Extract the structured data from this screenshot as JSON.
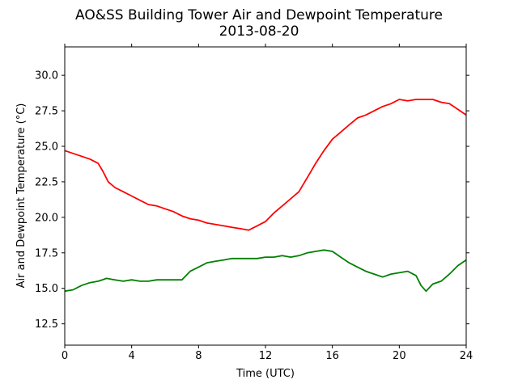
{
  "chart_data": {
    "type": "line",
    "title": "AO&SS Building Tower Air and Dewpoint Temperature",
    "subtitle": "2013-08-20",
    "xlabel": "Time (UTC)",
    "ylabel": "Air and Dewpoint Temperature (°C)",
    "xlim": [
      0,
      24
    ],
    "ylim": [
      11.0,
      32.0
    ],
    "xticks": [
      0,
      4,
      8,
      12,
      16,
      20,
      24
    ],
    "xtick_labels": [
      "0",
      "4",
      "8",
      "12",
      "16",
      "20",
      "24"
    ],
    "yticks": [
      12.5,
      15.0,
      17.5,
      20.0,
      22.5,
      25.0,
      27.5,
      30.0
    ],
    "ytick_labels": [
      "12.5",
      "15.0",
      "17.5",
      "20.0",
      "22.5",
      "25.0",
      "27.5",
      "30.0"
    ],
    "grid": false,
    "series": [
      {
        "color": "#ff0000",
        "x": [
          0,
          0.5,
          1,
          1.5,
          2,
          2.3,
          2.6,
          3,
          3.5,
          4,
          4.5,
          5,
          5.5,
          6,
          6.5,
          7,
          7.5,
          8,
          8.5,
          9,
          9.5,
          10,
          10.5,
          11,
          11.5,
          12,
          12.5,
          13,
          13.5,
          14,
          14.5,
          15,
          15.5,
          16,
          16.5,
          17,
          17.5,
          18,
          18.5,
          19,
          19.5,
          20,
          20.5,
          21,
          21.5,
          22,
          22.5,
          23,
          23.5,
          24
        ],
        "y": [
          24.7,
          24.5,
          24.3,
          24.1,
          23.8,
          23.2,
          22.5,
          22.1,
          21.8,
          21.5,
          21.2,
          20.9,
          20.8,
          20.6,
          20.4,
          20.1,
          19.9,
          19.8,
          19.6,
          19.5,
          19.4,
          19.3,
          19.2,
          19.1,
          19.4,
          19.7,
          20.3,
          20.8,
          21.3,
          21.8,
          22.8,
          23.8,
          24.7,
          25.5,
          26.0,
          26.5,
          27.0,
          27.2,
          27.5,
          27.8,
          28.0,
          28.3,
          28.2,
          28.3,
          28.3,
          28.3,
          28.1,
          28.0,
          27.6,
          27.2
        ]
      },
      {
        "color": "#008000",
        "x": [
          0,
          0.5,
          1,
          1.5,
          2,
          2.5,
          3,
          3.5,
          4,
          4.5,
          5,
          5.5,
          6,
          6.5,
          7,
          7.5,
          8,
          8.5,
          9,
          9.5,
          10,
          10.5,
          11,
          11.5,
          12,
          12.5,
          13,
          13.5,
          14,
          14.5,
          15,
          15.5,
          16,
          16.5,
          17,
          17.5,
          18,
          18.5,
          19,
          19.5,
          20,
          20.5,
          21,
          21.3,
          21.6,
          22,
          22.5,
          23,
          23.5,
          24
        ],
        "y": [
          14.8,
          14.9,
          15.2,
          15.4,
          15.5,
          15.7,
          15.6,
          15.5,
          15.6,
          15.5,
          15.5,
          15.6,
          15.6,
          15.6,
          15.6,
          16.2,
          16.5,
          16.8,
          16.9,
          17.0,
          17.1,
          17.1,
          17.1,
          17.1,
          17.2,
          17.2,
          17.3,
          17.2,
          17.3,
          17.5,
          17.6,
          17.7,
          17.6,
          17.2,
          16.8,
          16.5,
          16.2,
          16.0,
          15.8,
          16.0,
          16.1,
          16.2,
          15.9,
          15.2,
          14.8,
          15.3,
          15.5,
          16.0,
          16.6,
          17.0
        ]
      }
    ]
  }
}
